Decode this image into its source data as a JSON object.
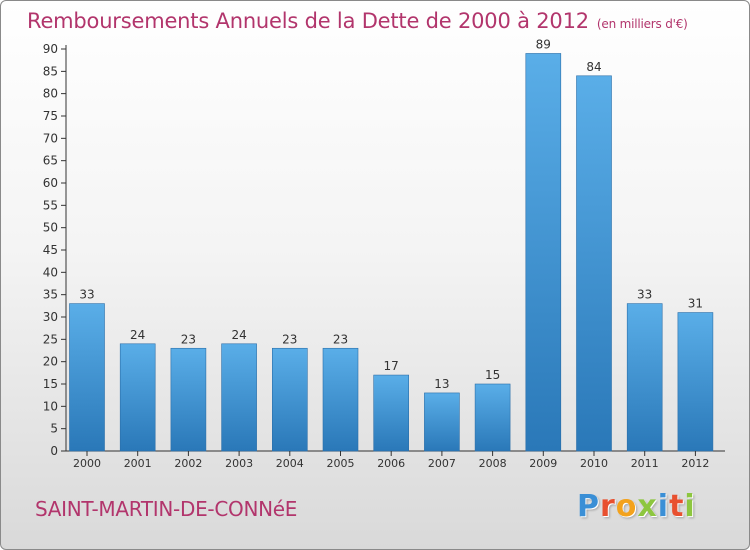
{
  "chart_data": {
    "type": "bar",
    "title": "Remboursements Annuels de la Dette de 2000 à 2012",
    "subtitle": "(en milliers d'€)",
    "categories": [
      "2000",
      "2001",
      "2002",
      "2003",
      "2004",
      "2005",
      "2006",
      "2007",
      "2008",
      "2009",
      "2010",
      "2011",
      "2012"
    ],
    "values": [
      33,
      24,
      23,
      24,
      23,
      23,
      17,
      13,
      15,
      89,
      84,
      33,
      31
    ],
    "ylim": [
      0,
      90
    ],
    "yticks": [
      0,
      5,
      10,
      15,
      20,
      25,
      30,
      35,
      40,
      45,
      50,
      55,
      60,
      65,
      70,
      75,
      80,
      85,
      90
    ],
    "xlabel": "",
    "ylabel": "",
    "grid": false,
    "bar_color_light": "#5aaee8",
    "bar_color_dark": "#2a78b8"
  },
  "footer": {
    "town": "SAINT-MARTIN-DE-CONNéE",
    "brand_letters": [
      {
        "ch": "P",
        "color": "#3a8fd6"
      },
      {
        "ch": "r",
        "color": "#e8502f"
      },
      {
        "ch": "o",
        "color": "#f3a21c"
      },
      {
        "ch": "x",
        "color": "#8dc63f"
      },
      {
        "ch": "i",
        "color": "#3a8fd6"
      },
      {
        "ch": "t",
        "color": "#e8502f"
      },
      {
        "ch": "i",
        "color": "#8dc63f"
      }
    ]
  },
  "colors": {
    "accent": "#b2356c",
    "axis": "#333333",
    "text": "#333333"
  }
}
